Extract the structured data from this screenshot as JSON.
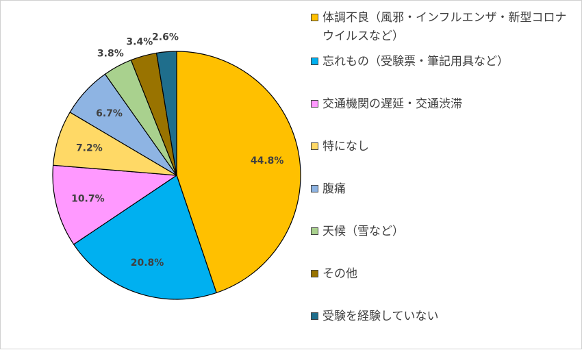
{
  "chart_data": {
    "type": "pie",
    "title": "",
    "start_angle_deg": 0,
    "direction": "clockwise",
    "legend_placement": "right",
    "slices": [
      {
        "label": "体調不良（風邪・インフルエンザ・新型コロナウイルスなど）",
        "value": 44.8,
        "display": "44.8%",
        "color": "#FFC000"
      },
      {
        "label": "忘れもの（受験票・筆記用具など）",
        "value": 20.8,
        "display": "20.8%",
        "color": "#00B0F0"
      },
      {
        "label": "交通機関の遅延・交通渋滞",
        "value": 10.7,
        "display": "10.7%",
        "color": "#FF99FF"
      },
      {
        "label": "特になし",
        "value": 7.2,
        "display": "7.2%",
        "color": "#FFD966"
      },
      {
        "label": "腹痛",
        "value": 6.7,
        "display": "6.7%",
        "color": "#8EB4E3"
      },
      {
        "label": "天候（雪など）",
        "value": 3.8,
        "display": "3.8%",
        "color": "#A9D18E"
      },
      {
        "label": "その他",
        "value": 3.4,
        "display": "3.4%",
        "color": "#997300"
      },
      {
        "label": "受験を経験していない",
        "value": 2.6,
        "display": "2.6%",
        "color": "#1F6E8C"
      }
    ]
  }
}
